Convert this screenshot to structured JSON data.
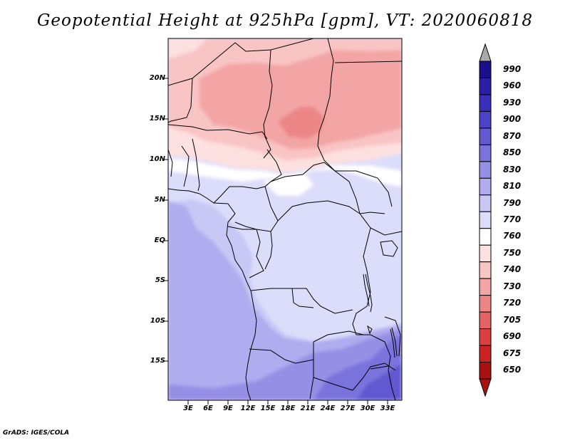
{
  "title": "Geopotential Height at 925hPa [gpm], VT: 2020060818",
  "footer": "GrADS: IGES/COLA",
  "map": {
    "lat_labels": [
      "20N",
      "15N",
      "10N",
      "5N",
      "EQ",
      "5S",
      "10S",
      "15S"
    ],
    "lon_labels": [
      "3E",
      "6E",
      "9E",
      "12E",
      "15E",
      "18E",
      "21E",
      "24E",
      "27E",
      "30E",
      "33E"
    ]
  },
  "colorbar": {
    "labels": [
      "990",
      "960",
      "930",
      "900",
      "870",
      "850",
      "830",
      "810",
      "790",
      "770",
      "760",
      "750",
      "740",
      "730",
      "720",
      "705",
      "690",
      "675",
      "650"
    ],
    "colors": [
      "#1a0f8c",
      "#2a1fa8",
      "#3b30bb",
      "#4c44c8",
      "#6259d2",
      "#7a73dc",
      "#958fe5",
      "#b0acef",
      "#c9c7f5",
      "#dcdcfb",
      "#ffffff",
      "#fde0e0",
      "#f9c4c4",
      "#f3a5a5",
      "#ec8686",
      "#e56363",
      "#dc3f3f",
      "#cc2222",
      "#aa1111"
    ]
  }
}
